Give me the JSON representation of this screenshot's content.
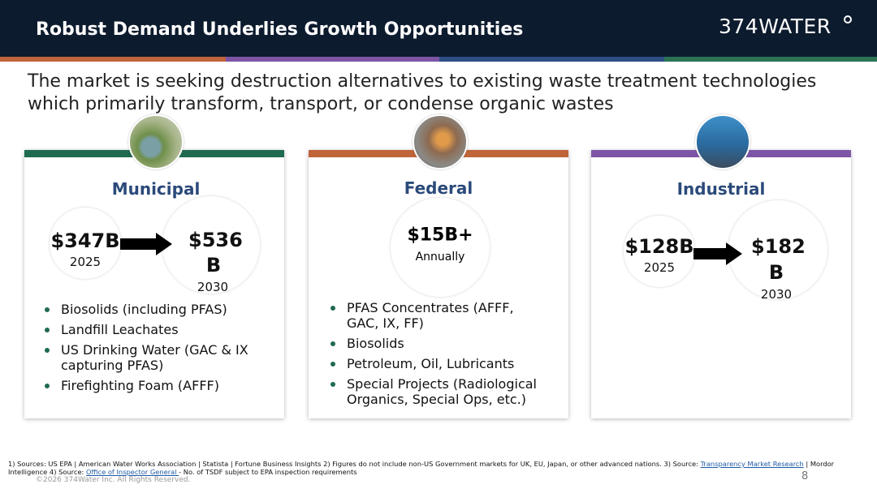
{
  "header": {
    "title": "Robust Demand Underlies Growth Opportunities",
    "logo": "374WATER"
  },
  "subtitle": "The market is seeking destruction alternatives to existing waste treatment technologies which primarily transform, transport, or condense organic wastes",
  "cards": [
    {
      "title": "Municipal",
      "from": {
        "value": "$347B",
        "year": "2025"
      },
      "to": {
        "value": "$536 B",
        "year": "2030"
      },
      "bullets": [
        "Biosolids (including PFAS)",
        "Landfill Leachates",
        "US Drinking Water (GAC & IX capturing PFAS)",
        "Firefighting Foam (AFFF)"
      ]
    },
    {
      "title": "Federal",
      "stat": {
        "value": "$15B+",
        "label": "Annually"
      },
      "bullets": [
        "PFAS Concentrates (AFFF, GAC, IX, FF)",
        "Biosolids",
        "Petroleum, Oil, Lubricants",
        "Special Projects (Radiological Organics, Special Ops, etc.)"
      ]
    },
    {
      "title": "Industrial",
      "from": {
        "value": "$128B",
        "year": "2025"
      },
      "to": {
        "value": "$182 B",
        "year": "2030"
      }
    }
  ],
  "footer": {
    "notes": [
      "1) Sources: US EPA | American Water Works Association | Statista | Fortune Business Insights 2) Figures do not include non-US Government markets for UK, EU, Japan, or other advanced nations. 3) Source: ",
      "Transparency Market Research",
      " | Mordor Intelligence 4) Source: ",
      "Office of Inspector General ",
      " - No. of TSDF subject to EPA inspection requirements"
    ],
    "copyright": "©2026 374Water Inc.  All Rights Reserved.",
    "page": "8"
  }
}
